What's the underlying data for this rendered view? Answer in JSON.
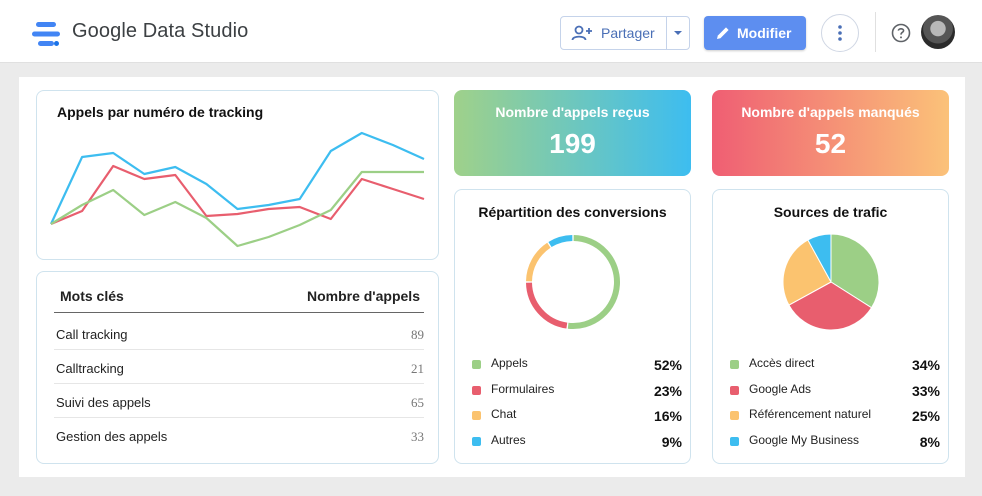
{
  "header": {
    "app_title": "Google Data Studio",
    "share_label": "Partager",
    "edit_label": "Modifier",
    "icons": [
      "data-studio-logo-icon",
      "person-add-icon",
      "caret-down-icon",
      "pencil-icon",
      "more-vert-icon",
      "help-icon",
      "avatar"
    ]
  },
  "colors": {
    "green": "#9ccf86",
    "red": "#e85e6e",
    "orange": "#fbc36f",
    "blue": "#3dbdf0",
    "edit_button": "#5d8ef0"
  },
  "line_chart": {
    "title": "Appels par numéro de tracking",
    "chart_data": {
      "type": "line",
      "x": [
        0,
        1,
        2,
        3,
        4,
        5,
        6,
        7,
        8,
        9,
        10,
        11,
        12
      ],
      "series": [
        {
          "color": "#3dbdf0",
          "values": [
            5,
            72,
            76,
            55,
            62,
            45,
            20,
            24,
            30,
            78,
            96,
            84,
            70
          ]
        },
        {
          "color": "#e85e6e",
          "values": [
            5,
            18,
            63,
            50,
            54,
            13,
            15,
            20,
            22,
            10,
            50,
            40,
            30
          ]
        },
        {
          "color": "#9ccf86",
          "values": [
            5,
            24,
            39,
            14,
            27,
            11,
            -17,
            -8,
            4,
            19,
            57,
            57,
            57
          ]
        }
      ]
    }
  },
  "keywords_table": {
    "col_keyword": "Mots clés",
    "col_calls": "Nombre d'appels",
    "rows": [
      {
        "keyword": "Call tracking",
        "calls": "89"
      },
      {
        "keyword": "Calltracking",
        "calls": "21"
      },
      {
        "keyword": "Suivi des appels",
        "calls": "65"
      },
      {
        "keyword": "Gestion des appels",
        "calls": "33"
      }
    ]
  },
  "kpi_received": {
    "label": "Nombre d'appels reçus",
    "value": "199"
  },
  "kpi_missed": {
    "label": "Nombre d'appels manqués",
    "value": "52"
  },
  "conversions": {
    "title": "Répartition des conversions",
    "chart_data": {
      "type": "pie",
      "donut": true,
      "slices": [
        {
          "label": "Appels",
          "value": 52,
          "display": "52%",
          "color": "#9ccf86"
        },
        {
          "label": "Formulaires",
          "value": 23,
          "display": "23%",
          "color": "#e85e6e"
        },
        {
          "label": "Chat",
          "value": 16,
          "display": "16%",
          "color": "#fbc36f"
        },
        {
          "label": "Autres",
          "value": 9,
          "display": "9%",
          "color": "#3dbdf0"
        }
      ]
    }
  },
  "traffic": {
    "title": "Sources de trafic",
    "chart_data": {
      "type": "pie",
      "donut": false,
      "slices": [
        {
          "label": "Accès direct",
          "value": 34,
          "display": "34%",
          "color": "#9ccf86"
        },
        {
          "label": "Google Ads",
          "value": 33,
          "display": "33%",
          "color": "#e85e6e"
        },
        {
          "label": "Référencement naturel",
          "value": 25,
          "display": "25%",
          "color": "#fbc36f"
        },
        {
          "label": "Google My Business",
          "value": 8,
          "display": "8%",
          "color": "#3dbdf0"
        }
      ]
    }
  }
}
